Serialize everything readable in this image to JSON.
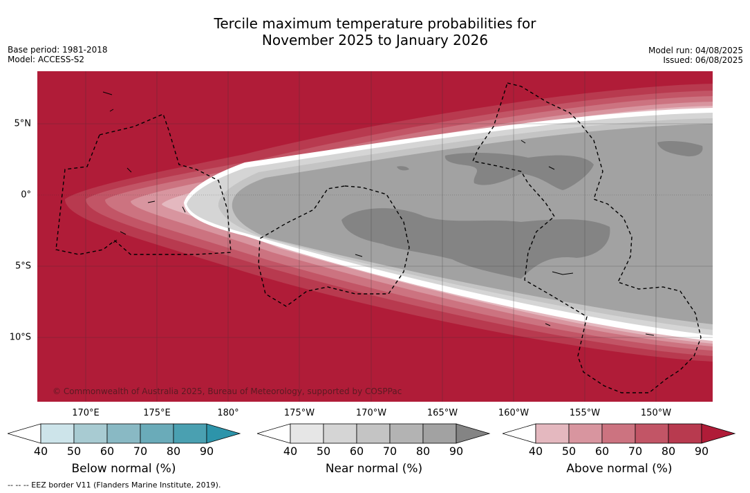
{
  "title_line1": "Tercile maximum temperature probabilities for",
  "title_line2": "November 2025 to January 2026",
  "base_period": "Base period: 1981-2018",
  "model": "Model: ACCESS-S2",
  "model_run": "Model run: 04/08/2025",
  "issued": "Issued: 06/08/2025",
  "credit": "© Commonwealth of Australia 2025, Bureau of Meteorology, supported by COSPPac",
  "footnote": "--  --  -- EEZ border V11 (Flanders Marine Institute, 2019).",
  "longitude_labels": [
    "170°E",
    "175°E",
    "180°",
    "175°W",
    "170°W",
    "165°W",
    "160°W",
    "155°W",
    "150°W"
  ],
  "latitude_labels": [
    "5°N",
    "0°",
    "5°S",
    "10°S"
  ],
  "colorbars": [
    {
      "title": "Below normal (%)",
      "ticks": [
        "40",
        "50",
        "60",
        "70",
        "80",
        "90"
      ],
      "colors": [
        "#ffffff",
        "#cde4ea",
        "#a8cbd2",
        "#89b9c4",
        "#6aabb9",
        "#4aa0b1",
        "#2d94aa"
      ]
    },
    {
      "title": "Near normal (%)",
      "ticks": [
        "40",
        "50",
        "60",
        "70",
        "80",
        "90"
      ],
      "colors": [
        "#ffffff",
        "#e6e6e6",
        "#d5d5d5",
        "#c4c4c4",
        "#b3b3b3",
        "#a2a2a2",
        "#848484"
      ]
    },
    {
      "title": "Above normal (%)",
      "ticks": [
        "40",
        "50",
        "60",
        "70",
        "80",
        "90"
      ],
      "colors": [
        "#ffffff",
        "#e4b8bf",
        "#d8959f",
        "#cc7380",
        "#c25566",
        "#b83a4f",
        "#b01c38"
      ]
    }
  ],
  "map_colors": {
    "above_90": "#b01c38",
    "above_80": "#b83a4f",
    "above_70": "#c25566",
    "above_60": "#cc7380",
    "above_50": "#d8959f",
    "above_40": "#e4b8bf",
    "white": "#ffffff",
    "near_50": "#d5d5d5",
    "near_60": "#c4c4c4",
    "near_70": "#a2a2a2",
    "near_80": "#848484"
  }
}
